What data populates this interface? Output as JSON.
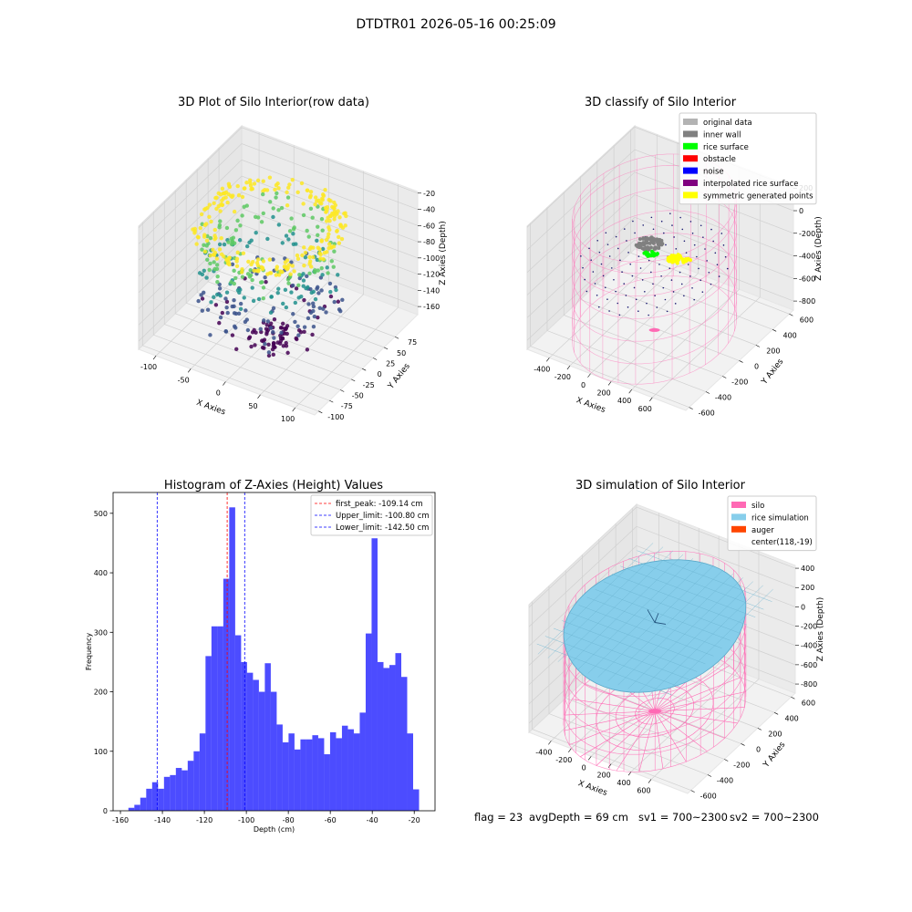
{
  "title": "DTDTR01 2026-05-16 00:25:09",
  "chart_data": [
    {
      "type": "scatter3d",
      "title": "3D Plot of Silo Interior(row data)",
      "xlabel": "X Axies",
      "ylabel": "Y Axies",
      "zlabel": "Z Axies (Depth)",
      "xlim": [
        -125,
        128
      ],
      "xticks": [
        -100,
        -50,
        0,
        50,
        100
      ],
      "ylim": [
        -109,
        127
      ],
      "yticks": [
        -100,
        -75,
        -50,
        -25,
        0,
        25,
        50,
        75
      ],
      "zlim": [
        -170,
        -18
      ],
      "zticks": [
        -160,
        -140,
        -120,
        -100,
        -80,
        -60,
        -40,
        -20
      ]
    },
    {
      "type": "classify3d",
      "title": "3D classify of Silo Interior",
      "xlabel": "X Axies",
      "ylabel": "Y Axies",
      "zlabel": "Z Axies (Depth)",
      "xlim": [
        -615,
        925
      ],
      "xticks": [
        -400,
        -200,
        0,
        200,
        400,
        600
      ],
      "ylim": [
        -640,
        650
      ],
      "yticks": [
        -600,
        -400,
        -200,
        0,
        200,
        400,
        600
      ],
      "zlim": [
        -880,
        210
      ],
      "zticks": [
        -800,
        -600,
        -400,
        -200,
        0,
        200
      ],
      "legend": [
        {
          "name": "original data",
          "color": "#b3b3b3"
        },
        {
          "name": "inner wall",
          "color": "#808080"
        },
        {
          "name": "rice surface",
          "color": "#00ff00"
        },
        {
          "name": "obstacle",
          "color": "#ff0000"
        },
        {
          "name": "noise",
          "color": "#0000ff"
        },
        {
          "name": "interpolated rice surface",
          "color": "#800080"
        },
        {
          "name": "symmetric generated points",
          "color": "#ffff00"
        }
      ]
    },
    {
      "type": "histogram",
      "title": "Histogram of Z-Axies (Height) Values",
      "xlabel": "Depth (cm)",
      "ylabel": "Frequency",
      "color": "#0000ff",
      "alpha": 0.7,
      "bins": [
        -156.2,
        -153.37,
        -150.55,
        -147.72,
        -144.89,
        -142.07,
        -139.24,
        -136.41,
        -133.59,
        -130.76,
        -127.94,
        -125.11,
        -122.28,
        -119.46,
        -116.63,
        -113.8,
        -110.98,
        -108.15,
        -105.32,
        -102.5,
        -99.67,
        -96.84,
        -94.02,
        -91.19,
        -88.36,
        -85.54,
        -82.71,
        -79.89,
        -77.06,
        -74.23,
        -71.41,
        -68.58,
        -65.75,
        -62.93,
        -60.1,
        -57.27,
        -54.45,
        -51.62,
        -48.79,
        -45.97,
        -43.14,
        -40.32,
        -37.49,
        -34.66,
        -31.84,
        -29.01,
        -26.18,
        -23.36,
        -20.53,
        -17.7
      ],
      "counts": [
        5,
        10,
        22,
        37,
        48,
        37,
        57,
        60,
        72,
        68,
        84,
        100,
        130,
        260,
        310,
        310,
        390,
        510,
        295,
        250,
        232,
        220,
        200,
        248,
        200,
        145,
        115,
        130,
        103,
        120,
        120,
        127,
        122,
        95,
        132,
        122,
        143,
        137,
        130,
        165,
        298,
        458,
        250,
        240,
        245,
        265,
        225,
        130,
        36
      ],
      "xlim": [
        -163.5,
        -10.1
      ],
      "xticks": [
        -160,
        -140,
        -120,
        -100,
        -80,
        -60,
        -40,
        -20
      ],
      "ylim": [
        0,
        535
      ],
      "yticks": [
        0,
        100,
        200,
        300,
        400,
        500
      ],
      "vlines": [
        {
          "value": -109.14,
          "label": "first_peak: -109.14 cm",
          "color": "#ff0000"
        },
        {
          "value": -100.8,
          "label": "Upper_limit: -100.80 cm",
          "color": "#0000ff"
        },
        {
          "value": -142.5,
          "label": "Lower_limit: -142.50 cm",
          "color": "#0000ff"
        }
      ]
    },
    {
      "type": "surface3d",
      "title": "3D simulation of Silo Interior",
      "xlabel": "X Axies",
      "ylabel": "Y Axies",
      "zlabel": "Z Axies (Depth)",
      "xlim": [
        -622,
        965
      ],
      "xticks": [
        -400,
        -200,
        0,
        200,
        400,
        600
      ],
      "ylim": [
        -640,
        650
      ],
      "yticks": [
        -600,
        -400,
        -200,
        0,
        200,
        400,
        600
      ],
      "zlim": [
        -894,
        429
      ],
      "zticks": [
        -800,
        -600,
        -400,
        -200,
        0,
        200,
        400
      ],
      "legend": [
        {
          "name": "silo",
          "color": "#ff69b4"
        },
        {
          "name": "rice simulation",
          "color": "#87ceeb"
        },
        {
          "name": "auger",
          "color": "#ff4500"
        },
        {
          "name": "center(118,-19)",
          "color": null
        }
      ]
    }
  ],
  "footer": [
    "flag = 23",
    "avgDepth = 69 cm",
    "sv1 = 700~2300",
    "sv2 = 700~2300"
  ]
}
